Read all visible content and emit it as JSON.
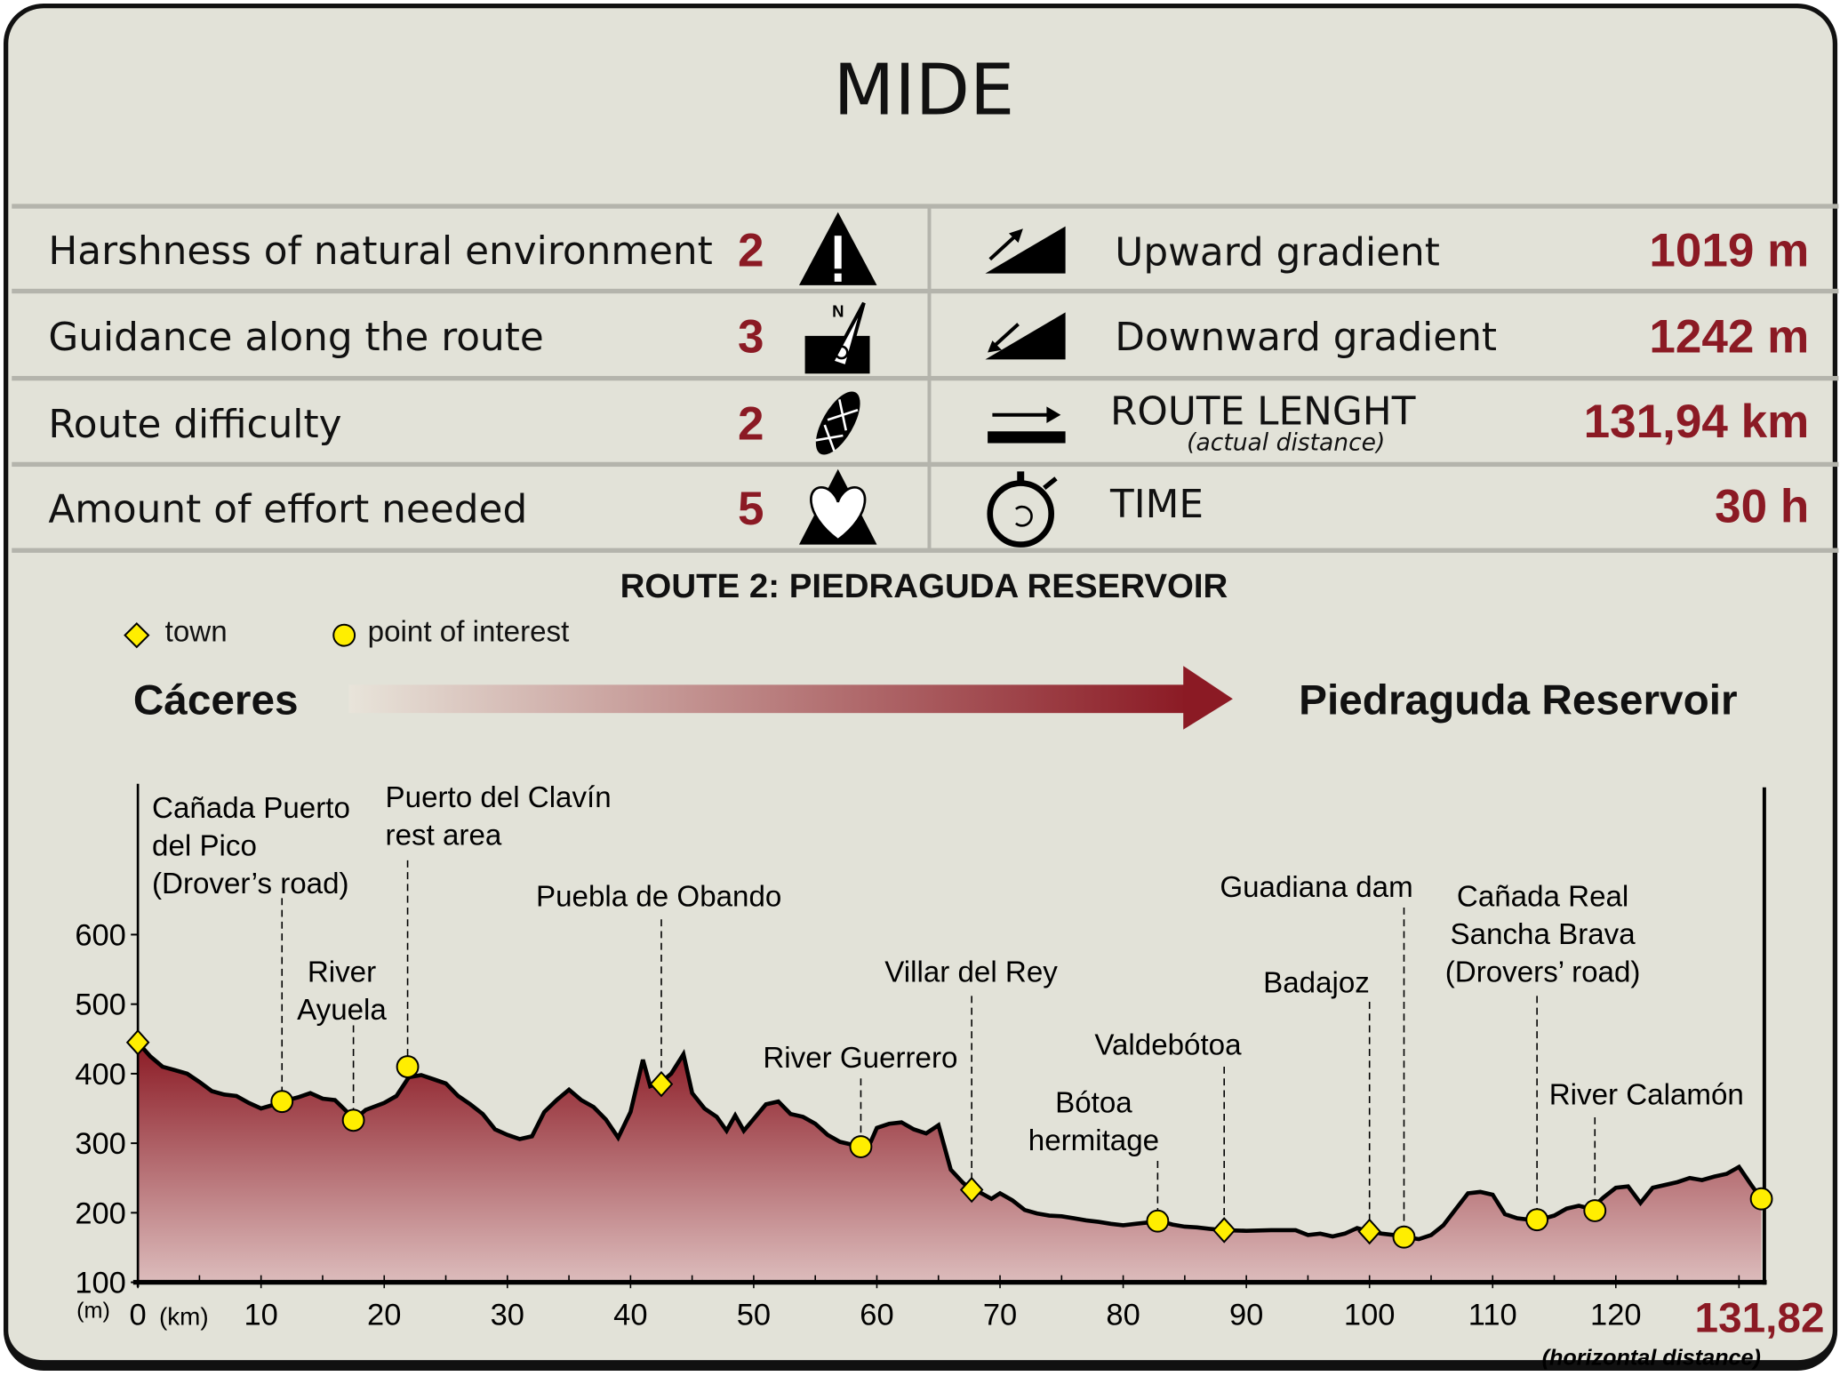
{
  "title": "MIDE",
  "mide_left": [
    {
      "label": "Harshness of natural environment",
      "value": "2",
      "icon": "mountain-warning-icon"
    },
    {
      "label": "Guidance along the route",
      "value": "3",
      "icon": "compass-orientation-icon"
    },
    {
      "label": "Route difficulty",
      "value": "2",
      "icon": "boot-footprint-icon"
    },
    {
      "label": "Amount of effort needed",
      "value": "5",
      "icon": "heart-mountain-icon"
    }
  ],
  "mide_right": [
    {
      "label": "Upward gradient",
      "value": "1019 m",
      "icon": "upward-slope-icon"
    },
    {
      "label": "Downward gradient",
      "value": "1242 m",
      "icon": "downward-slope-icon"
    },
    {
      "label": "ROUTE LENGHT",
      "sublabel": "(actual distance)",
      "value": "131,94 km",
      "icon": "distance-arrow-icon"
    },
    {
      "label": "TIME",
      "value": "30 h",
      "icon": "stopwatch-icon"
    }
  ],
  "route_title": "ROUTE 2: PIEDRAGUDA RESERVOIR",
  "legend": {
    "town": "town",
    "poi": "point of interest"
  },
  "start": "Cáceres",
  "end": "Piedraguda Reservoir",
  "colors": {
    "accent": "#8b1a24",
    "marker": "#ffee00",
    "background": "#e2e2d8"
  },
  "chart_data": {
    "type": "area",
    "ylabel": "(m)",
    "xlabel": "(km)",
    "ylim": [
      100,
      600
    ],
    "xlim": [
      0,
      131.82
    ],
    "yticks": [
      100,
      200,
      300,
      400,
      500,
      600
    ],
    "xticks": [
      0,
      10,
      20,
      30,
      40,
      50,
      60,
      70,
      80,
      90,
      100,
      110,
      120
    ],
    "x_end_label": "131,82",
    "x_end_note": "(horizontal distance)",
    "profile": [
      [
        0,
        445
      ],
      [
        1,
        425
      ],
      [
        2,
        410
      ],
      [
        3,
        405
      ],
      [
        4,
        400
      ],
      [
        5,
        388
      ],
      [
        6,
        375
      ],
      [
        7,
        370
      ],
      [
        8,
        368
      ],
      [
        9,
        358
      ],
      [
        10,
        350
      ],
      [
        11,
        355
      ],
      [
        11.7,
        360
      ],
      [
        13,
        366
      ],
      [
        14,
        372
      ],
      [
        15,
        364
      ],
      [
        16,
        362
      ],
      [
        17,
        345
      ],
      [
        17.5,
        333
      ],
      [
        18.5,
        348
      ],
      [
        20,
        358
      ],
      [
        21,
        368
      ],
      [
        22,
        395
      ],
      [
        23,
        398
      ],
      [
        24,
        392
      ],
      [
        25,
        386
      ],
      [
        26,
        368
      ],
      [
        27,
        356
      ],
      [
        28,
        342
      ],
      [
        29,
        320
      ],
      [
        30,
        312
      ],
      [
        31,
        306
      ],
      [
        32,
        310
      ],
      [
        33,
        345
      ],
      [
        34,
        362
      ],
      [
        35,
        377
      ],
      [
        36,
        362
      ],
      [
        37,
        352
      ],
      [
        38,
        334
      ],
      [
        39,
        308
      ],
      [
        40,
        345
      ],
      [
        41,
        420
      ],
      [
        41.6,
        382
      ],
      [
        42.5,
        388
      ],
      [
        43.3,
        400
      ],
      [
        44.3,
        428
      ],
      [
        45,
        372
      ],
      [
        46,
        350
      ],
      [
        47,
        338
      ],
      [
        47.8,
        318
      ],
      [
        48.5,
        340
      ],
      [
        49.2,
        318
      ],
      [
        50,
        335
      ],
      [
        51,
        356
      ],
      [
        52,
        360
      ],
      [
        53,
        342
      ],
      [
        54,
        338
      ],
      [
        55,
        328
      ],
      [
        56,
        312
      ],
      [
        57,
        302
      ],
      [
        58.7,
        295
      ],
      [
        59.5,
        302
      ],
      [
        60,
        322
      ],
      [
        61,
        328
      ],
      [
        62,
        330
      ],
      [
        63,
        320
      ],
      [
        64,
        314
      ],
      [
        65,
        326
      ],
      [
        66,
        262
      ],
      [
        67,
        243
      ],
      [
        67.7,
        233
      ],
      [
        68.5,
        228
      ],
      [
        69.3,
        220
      ],
      [
        70,
        228
      ],
      [
        71,
        218
      ],
      [
        72,
        204
      ],
      [
        73,
        199
      ],
      [
        74,
        196
      ],
      [
        75,
        195
      ],
      [
        76,
        192
      ],
      [
        77,
        189
      ],
      [
        78,
        187
      ],
      [
        79,
        184
      ],
      [
        80,
        182
      ],
      [
        81,
        184
      ],
      [
        82,
        186
      ],
      [
        83,
        188
      ],
      [
        84,
        183
      ],
      [
        85,
        180
      ],
      [
        86,
        179
      ],
      [
        87,
        177
      ],
      [
        88.2,
        175
      ],
      [
        90,
        174
      ],
      [
        92,
        175
      ],
      [
        94,
        175
      ],
      [
        95,
        168
      ],
      [
        96,
        170
      ],
      [
        97,
        166
      ],
      [
        98,
        170
      ],
      [
        99,
        178
      ],
      [
        100,
        173
      ],
      [
        101,
        170
      ],
      [
        102,
        168
      ],
      [
        103,
        165
      ],
      [
        104,
        162
      ],
      [
        105,
        168
      ],
      [
        106,
        182
      ],
      [
        107,
        205
      ],
      [
        108,
        228
      ],
      [
        109,
        230
      ],
      [
        110,
        226
      ],
      [
        111,
        198
      ],
      [
        112,
        192
      ],
      [
        113,
        190
      ],
      [
        114,
        191
      ],
      [
        115,
        196
      ],
      [
        116,
        206
      ],
      [
        117,
        210
      ],
      [
        118,
        206
      ],
      [
        119,
        222
      ],
      [
        120,
        236
      ],
      [
        121,
        238
      ],
      [
        122,
        214
      ],
      [
        123,
        236
      ],
      [
        124,
        240
      ],
      [
        125,
        244
      ],
      [
        126,
        250
      ],
      [
        127,
        247
      ],
      [
        128,
        252
      ],
      [
        129,
        256
      ],
      [
        130,
        266
      ],
      [
        131,
        240
      ],
      [
        131.82,
        220
      ]
    ],
    "markers": [
      {
        "km": 0,
        "elev": 445,
        "type": "town",
        "label": ""
      },
      {
        "km": 11.7,
        "elev": 360,
        "type": "poi",
        "label": "Cañada Puerto\ndel Pico\n(Drover’s road)"
      },
      {
        "km": 17.5,
        "elev": 333,
        "type": "poi",
        "label": "River\nAyuela"
      },
      {
        "km": 21.9,
        "elev": 410,
        "type": "poi",
        "label": "Puerto del Clavín\nrest area"
      },
      {
        "km": 42.5,
        "elev": 385,
        "type": "town",
        "label": "Puebla de Obando"
      },
      {
        "km": 58.7,
        "elev": 295,
        "type": "poi",
        "label": "River Guerrero"
      },
      {
        "km": 67.7,
        "elev": 233,
        "type": "town",
        "label": "Villar del Rey"
      },
      {
        "km": 82.8,
        "elev": 188,
        "type": "poi",
        "label": "Bótoa\nhermitage"
      },
      {
        "km": 88.2,
        "elev": 175,
        "type": "town",
        "label": "Valdebótoa"
      },
      {
        "km": 100,
        "elev": 173,
        "type": "town",
        "label": "Badajoz"
      },
      {
        "km": 102.8,
        "elev": 165,
        "type": "poi",
        "label": "Guadiana dam"
      },
      {
        "km": 113.6,
        "elev": 190,
        "type": "poi",
        "label": "Cañada Real\nSancha Brava\n(Drovers’ road)"
      },
      {
        "km": 118.3,
        "elev": 203,
        "type": "poi",
        "label": "River Calamón"
      },
      {
        "km": 131.82,
        "elev": 220,
        "type": "poi",
        "label": ""
      }
    ]
  }
}
